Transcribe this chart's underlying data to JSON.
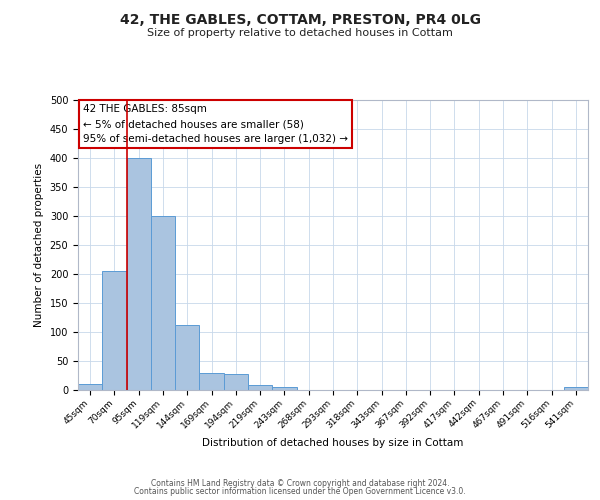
{
  "title": "42, THE GABLES, COTTAM, PRESTON, PR4 0LG",
  "subtitle": "Size of property relative to detached houses in Cottam",
  "xlabel": "Distribution of detached houses by size in Cottam",
  "ylabel": "Number of detached properties",
  "bar_labels": [
    "45sqm",
    "70sqm",
    "95sqm",
    "119sqm",
    "144sqm",
    "169sqm",
    "194sqm",
    "219sqm",
    "243sqm",
    "268sqm",
    "293sqm",
    "318sqm",
    "343sqm",
    "367sqm",
    "392sqm",
    "417sqm",
    "442sqm",
    "467sqm",
    "491sqm",
    "516sqm",
    "541sqm"
  ],
  "bar_heights": [
    10,
    205,
    400,
    300,
    112,
    30,
    27,
    8,
    6,
    0,
    0,
    0,
    0,
    0,
    0,
    0,
    0,
    0,
    0,
    0,
    5
  ],
  "bar_color": "#aac4e0",
  "bar_edge_color": "#5b9bd5",
  "ylim": [
    0,
    500
  ],
  "yticks": [
    0,
    50,
    100,
    150,
    200,
    250,
    300,
    350,
    400,
    450,
    500
  ],
  "vline_x_index": 2,
  "vline_color": "#cc0000",
  "annotation_title": "42 THE GABLES: 85sqm",
  "annotation_line1": "← 5% of detached houses are smaller (58)",
  "annotation_line2": "95% of semi-detached houses are larger (1,032) →",
  "annotation_box_color": "#cc0000",
  "footer_line1": "Contains HM Land Registry data © Crown copyright and database right 2024.",
  "footer_line2": "Contains public sector information licensed under the Open Government Licence v3.0.",
  "bg_color": "#ffffff",
  "grid_color": "#c8d8ea"
}
